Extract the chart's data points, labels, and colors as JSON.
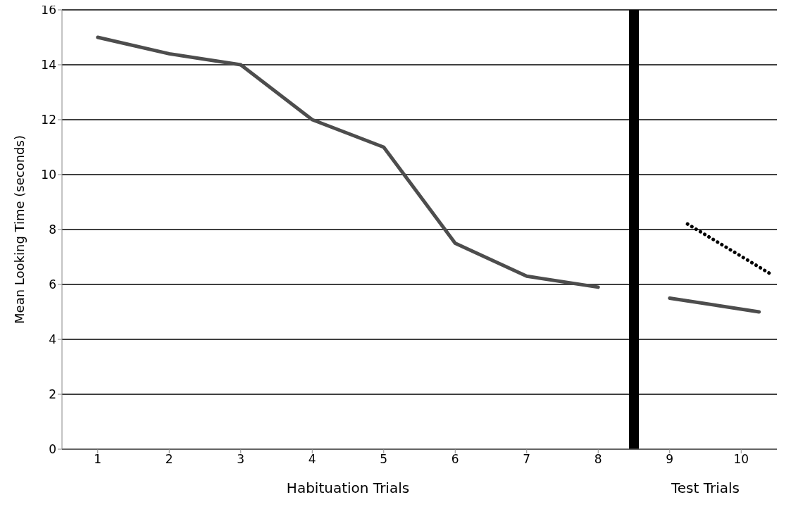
{
  "chart_data": {
    "type": "line",
    "ylabel": "Mean Looking Time (seconds)",
    "xlabel": "Habituation Trials",
    "annotations": [
      "Test Trials"
    ],
    "xlim": [
      0.5,
      10.5
    ],
    "xticks": [
      1,
      2,
      3,
      4,
      5,
      6,
      7,
      8,
      9,
      10
    ],
    "ylim": [
      0,
      16
    ],
    "yticks": [
      0,
      2,
      4,
      6,
      8,
      10,
      12,
      14,
      16
    ],
    "grid": "y",
    "marker": "none",
    "series": [
      {
        "color": "#4d4d4d",
        "x": [
          1,
          2,
          3,
          4,
          5,
          6,
          7,
          8
        ],
        "values": [
          15,
          14.4,
          14,
          12,
          11,
          7.5,
          6.3,
          5.9
        ]
      },
      {
        "color": "#4d4d4d",
        "x": [
          9,
          10.25
        ],
        "values": [
          5.5,
          5.0
        ]
      },
      {
        "color": "#000000",
        "line_style": "dotted",
        "x": [
          9.25,
          10.4
        ],
        "values": [
          8.2,
          6.4
        ]
      }
    ],
    "ref_lines": [
      {
        "axis": "x",
        "value": 8.5,
        "color": "#000000"
      }
    ]
  }
}
